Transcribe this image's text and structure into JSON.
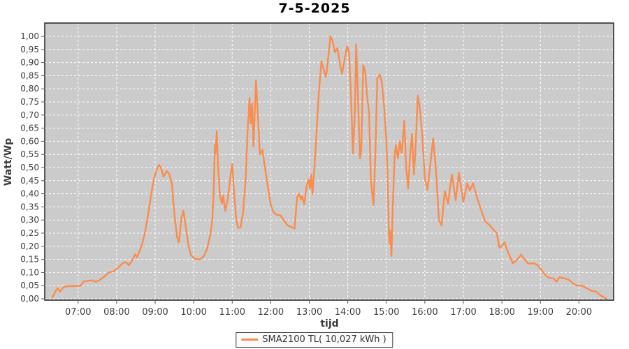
{
  "window": {
    "title": "7-5-2025"
  },
  "colors": {
    "line": "#FA8C4D",
    "plot_background": "#CBCBCB",
    "grid": "#FFFFFF",
    "plot_border": "#222222",
    "tick_text": "#3f3f3f"
  },
  "legend": {
    "label": "SMA2100 TL( 10,027 kWh )"
  },
  "chart_data": {
    "type": "line",
    "title": "7-5-2025",
    "xlabel": "tijd",
    "ylabel": "Watt/Wp",
    "ylim": [
      0.0,
      1.0
    ],
    "y_tick_step": 0.05,
    "y_tick_labels": [
      "0,00",
      "0,05",
      "0,10",
      "0,15",
      "0,20",
      "0,25",
      "0,30",
      "0,35",
      "0,40",
      "0,45",
      "0,50",
      "0,55",
      "0,60",
      "0,65",
      "0,70",
      "0,75",
      "0,80",
      "0,85",
      "0,90",
      "0,95",
      "1,00"
    ],
    "x_range": [
      "06:08",
      "20:54"
    ],
    "x_tick_labels": [
      "07:00",
      "08:00",
      "09:00",
      "10:00",
      "11:00",
      "12:00",
      "13:00",
      "14:00",
      "15:00",
      "16:00",
      "17:00",
      "18:00",
      "19:00",
      "20:00"
    ],
    "grid": "white dashed on gray, both axes",
    "legend_position": "bottom-center",
    "series": [
      {
        "name": "SMA2100 TL( 10,027 kWh )",
        "color": "#FA8C4D",
        "points": [
          [
            "06:20",
            0.005
          ],
          [
            "06:25",
            0.03
          ],
          [
            "06:28",
            0.04
          ],
          [
            "06:32",
            0.027
          ],
          [
            "06:37",
            0.043
          ],
          [
            "06:43",
            0.048
          ],
          [
            "06:55",
            0.048
          ],
          [
            "07:04",
            0.05
          ],
          [
            "07:09",
            0.066
          ],
          [
            "07:14",
            0.068
          ],
          [
            "07:22",
            0.07
          ],
          [
            "07:28",
            0.065
          ],
          [
            "07:34",
            0.072
          ],
          [
            "07:41",
            0.085
          ],
          [
            "07:48",
            0.1
          ],
          [
            "07:56",
            0.105
          ],
          [
            "08:03",
            0.12
          ],
          [
            "08:08",
            0.133
          ],
          [
            "08:14",
            0.14
          ],
          [
            "08:19",
            0.128
          ],
          [
            "08:24",
            0.145
          ],
          [
            "08:29",
            0.17
          ],
          [
            "08:32",
            0.158
          ],
          [
            "08:37",
            0.19
          ],
          [
            "08:40",
            0.21
          ],
          [
            "08:44",
            0.25
          ],
          [
            "08:49",
            0.32
          ],
          [
            "08:54",
            0.4
          ],
          [
            "08:58",
            0.455
          ],
          [
            "09:02",
            0.49
          ],
          [
            "09:06",
            0.51
          ],
          [
            "09:09",
            0.5
          ],
          [
            "09:13",
            0.465
          ],
          [
            "09:18",
            0.487
          ],
          [
            "09:22",
            0.475
          ],
          [
            "09:26",
            0.44
          ],
          [
            "09:30",
            0.32
          ],
          [
            "09:34",
            0.235
          ],
          [
            "09:37",
            0.215
          ],
          [
            "09:41",
            0.31
          ],
          [
            "09:44",
            0.335
          ],
          [
            "09:48",
            0.27
          ],
          [
            "09:52",
            0.2
          ],
          [
            "09:56",
            0.165
          ],
          [
            "10:02",
            0.152
          ],
          [
            "10:10",
            0.15
          ],
          [
            "10:16",
            0.163
          ],
          [
            "10:21",
            0.19
          ],
          [
            "10:26",
            0.245
          ],
          [
            "10:29",
            0.3
          ],
          [
            "10:31",
            0.4
          ],
          [
            "10:33",
            0.585
          ],
          [
            "10:34",
            0.555
          ],
          [
            "10:36",
            0.638
          ],
          [
            "10:38",
            0.5
          ],
          [
            "10:41",
            0.39
          ],
          [
            "10:44",
            0.363
          ],
          [
            "10:46",
            0.394
          ],
          [
            "10:49",
            0.335
          ],
          [
            "10:53",
            0.38
          ],
          [
            "10:57",
            0.46
          ],
          [
            "11:00",
            0.515
          ],
          [
            "11:03",
            0.4
          ],
          [
            "11:06",
            0.31
          ],
          [
            "11:09",
            0.27
          ],
          [
            "11:13",
            0.272
          ],
          [
            "11:17",
            0.33
          ],
          [
            "11:21",
            0.46
          ],
          [
            "11:24",
            0.64
          ],
          [
            "11:27",
            0.765
          ],
          [
            "11:29",
            0.668
          ],
          [
            "11:31",
            0.745
          ],
          [
            "11:33",
            0.58
          ],
          [
            "11:35",
            0.7
          ],
          [
            "11:37",
            0.832
          ],
          [
            "11:40",
            0.7
          ],
          [
            "11:43",
            0.55
          ],
          [
            "11:47",
            0.567
          ],
          [
            "11:51",
            0.5
          ],
          [
            "11:56",
            0.42
          ],
          [
            "12:00",
            0.36
          ],
          [
            "12:04",
            0.33
          ],
          [
            "12:09",
            0.32
          ],
          [
            "12:15",
            0.318
          ],
          [
            "12:20",
            0.3
          ],
          [
            "12:26",
            0.28
          ],
          [
            "12:31",
            0.274
          ],
          [
            "12:37",
            0.268
          ],
          [
            "12:41",
            0.385
          ],
          [
            "12:44",
            0.4
          ],
          [
            "12:47",
            0.378
          ],
          [
            "12:49",
            0.392
          ],
          [
            "12:52",
            0.36
          ],
          [
            "12:56",
            0.43
          ],
          [
            "12:59",
            0.455
          ],
          [
            "13:01",
            0.42
          ],
          [
            "13:03",
            0.473
          ],
          [
            "13:05",
            0.4
          ],
          [
            "13:08",
            0.5
          ],
          [
            "13:11",
            0.62
          ],
          [
            "13:15",
            0.79
          ],
          [
            "13:19",
            0.905
          ],
          [
            "13:22",
            0.878
          ],
          [
            "13:26",
            0.845
          ],
          [
            "13:30",
            0.93
          ],
          [
            "13:33",
            1.0
          ],
          [
            "13:36",
            0.985
          ],
          [
            "13:40",
            0.94
          ],
          [
            "13:44",
            0.955
          ],
          [
            "13:48",
            0.89
          ],
          [
            "13:51",
            0.858
          ],
          [
            "13:55",
            0.91
          ],
          [
            "13:59",
            0.963
          ],
          [
            "14:02",
            0.935
          ],
          [
            "14:05",
            0.78
          ],
          [
            "14:08",
            0.553
          ],
          [
            "14:11",
            0.7
          ],
          [
            "14:13",
            0.97
          ],
          [
            "14:16",
            0.76
          ],
          [
            "14:19",
            0.535
          ],
          [
            "14:21",
            0.567
          ],
          [
            "14:24",
            0.89
          ],
          [
            "14:27",
            0.868
          ],
          [
            "14:30",
            0.775
          ],
          [
            "14:33",
            0.71
          ],
          [
            "14:36",
            0.45
          ],
          [
            "14:40",
            0.357
          ],
          [
            "14:43",
            0.55
          ],
          [
            "14:46",
            0.84
          ],
          [
            "14:50",
            0.854
          ],
          [
            "14:53",
            0.825
          ],
          [
            "14:57",
            0.72
          ],
          [
            "15:00",
            0.6
          ],
          [
            "15:02",
            0.47
          ],
          [
            "15:04",
            0.25
          ],
          [
            "15:05",
            0.21
          ],
          [
            "15:06",
            0.26
          ],
          [
            "15:08",
            0.163
          ],
          [
            "15:10",
            0.35
          ],
          [
            "15:13",
            0.55
          ],
          [
            "15:15",
            0.585
          ],
          [
            "15:18",
            0.535
          ],
          [
            "15:21",
            0.6
          ],
          [
            "15:24",
            0.555
          ],
          [
            "15:28",
            0.678
          ],
          [
            "15:31",
            0.5
          ],
          [
            "15:34",
            0.42
          ],
          [
            "15:37",
            0.55
          ],
          [
            "15:40",
            0.628
          ],
          [
            "15:43",
            0.473
          ],
          [
            "15:46",
            0.6
          ],
          [
            "15:49",
            0.774
          ],
          [
            "15:52",
            0.73
          ],
          [
            "15:56",
            0.62
          ],
          [
            "16:00",
            0.46
          ],
          [
            "16:04",
            0.415
          ],
          [
            "16:08",
            0.5
          ],
          [
            "16:13",
            0.61
          ],
          [
            "16:17",
            0.5
          ],
          [
            "16:22",
            0.3
          ],
          [
            "16:26",
            0.279
          ],
          [
            "16:31",
            0.41
          ],
          [
            "16:36",
            0.362
          ],
          [
            "16:42",
            0.473
          ],
          [
            "16:48",
            0.375
          ],
          [
            "16:53",
            0.48
          ],
          [
            "16:58",
            0.4
          ],
          [
            "17:00",
            0.37
          ],
          [
            "17:06",
            0.44
          ],
          [
            "17:10",
            0.412
          ],
          [
            "17:15",
            0.44
          ],
          [
            "17:21",
            0.388
          ],
          [
            "17:28",
            0.335
          ],
          [
            "17:34",
            0.295
          ],
          [
            "17:41",
            0.28
          ],
          [
            "17:47",
            0.262
          ],
          [
            "17:52",
            0.25
          ],
          [
            "17:56",
            0.195
          ],
          [
            "18:00",
            0.2
          ],
          [
            "18:04",
            0.215
          ],
          [
            "18:10",
            0.175
          ],
          [
            "18:17",
            0.135
          ],
          [
            "18:24",
            0.15
          ],
          [
            "18:30",
            0.168
          ],
          [
            "18:36",
            0.148
          ],
          [
            "18:41",
            0.134
          ],
          [
            "18:50",
            0.135
          ],
          [
            "18:56",
            0.127
          ],
          [
            "19:03",
            0.105
          ],
          [
            "19:08",
            0.09
          ],
          [
            "19:13",
            0.08
          ],
          [
            "19:20",
            0.078
          ],
          [
            "19:25",
            0.065
          ],
          [
            "19:30",
            0.082
          ],
          [
            "19:37",
            0.078
          ],
          [
            "19:44",
            0.073
          ],
          [
            "19:50",
            0.06
          ],
          [
            "19:56",
            0.051
          ],
          [
            "20:04",
            0.05
          ],
          [
            "20:10",
            0.043
          ],
          [
            "20:15",
            0.036
          ],
          [
            "20:20",
            0.03
          ],
          [
            "20:27",
            0.027
          ],
          [
            "20:33",
            0.014
          ],
          [
            "20:39",
            0.005
          ],
          [
            "20:43",
            0.0
          ]
        ]
      }
    ]
  }
}
